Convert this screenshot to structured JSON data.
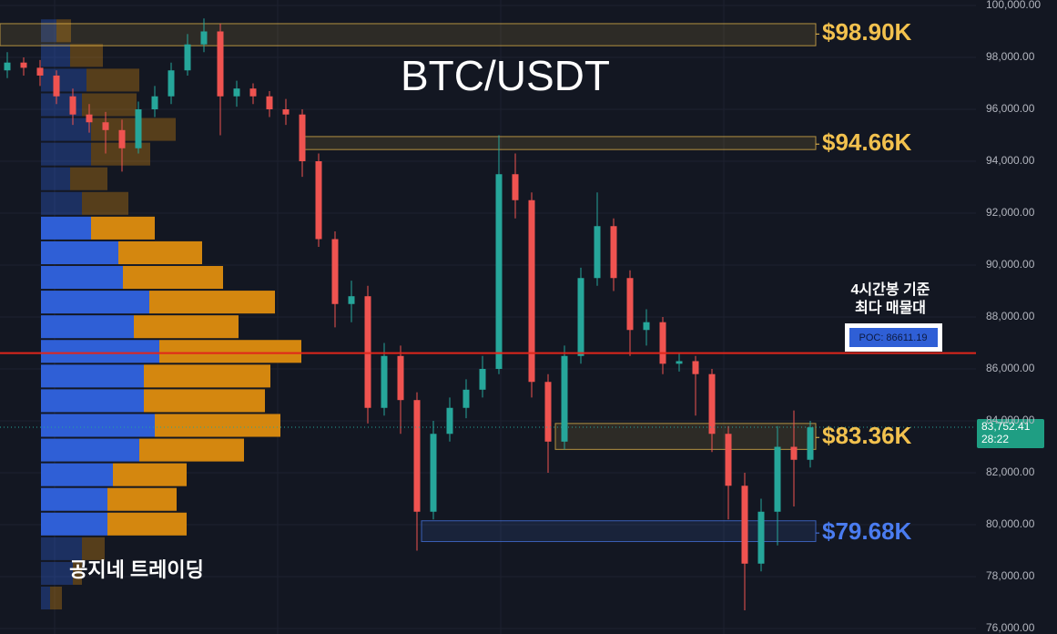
{
  "chart_data": {
    "type": "candlestick",
    "title": "BTC/USDT",
    "watermark": "공지네 트레이딩",
    "ylim": [
      76000,
      100000
    ],
    "yticks": [
      {
        "value": 76000,
        "label": "76,000.00"
      },
      {
        "value": 78000,
        "label": "78,000.00"
      },
      {
        "value": 80000,
        "label": "80,000.00"
      },
      {
        "value": 82000,
        "label": "82,000.00"
      },
      {
        "value": 84000,
        "label": "84,000.00"
      },
      {
        "value": 86000,
        "label": "86,000.00"
      },
      {
        "value": 88000,
        "label": "88,000.00"
      },
      {
        "value": 90000,
        "label": "90,000.00"
      },
      {
        "value": 92000,
        "label": "92,000.00"
      },
      {
        "value": 94000,
        "label": "94,000.00"
      },
      {
        "value": 96000,
        "label": "96,000.00"
      },
      {
        "value": 98000,
        "label": "98,000.00"
      },
      {
        "value": 100000,
        "label": "100,000.00"
      }
    ],
    "grid": true,
    "up_color": "#26a69a",
    "down_color": "#ef5350",
    "open": [
      97500,
      97800,
      97600,
      97300,
      96500,
      95800,
      95500,
      95200,
      94500,
      96000,
      96500,
      97500,
      98500,
      99000,
      96500,
      96800,
      96500,
      96000,
      95800,
      94000,
      91000,
      88500,
      88800,
      84500,
      86500,
      84800,
      80500,
      83500,
      84500,
      85200,
      86000,
      93500,
      92500,
      85500,
      83200,
      86500,
      89500,
      91500,
      89500,
      87500,
      87800,
      86200,
      86300,
      85800,
      83500,
      81500,
      78500,
      80500,
      83000,
      82500
    ],
    "high": [
      98200,
      98000,
      97900,
      97500,
      96800,
      96200,
      95900,
      95600,
      96300,
      96900,
      97800,
      98900,
      99500,
      99300,
      97100,
      97000,
      96700,
      96400,
      96000,
      94300,
      91300,
      89400,
      89200,
      87000,
      86900,
      85100,
      84000,
      84900,
      85600,
      86500,
      95000,
      94300,
      92800,
      85800,
      86900,
      89900,
      92800,
      91800,
      89800,
      88300,
      88000,
      86600,
      86500,
      86000,
      83800,
      82000,
      81000,
      83800,
      84400,
      84000
    ],
    "low": [
      97200,
      97300,
      96900,
      96200,
      95400,
      95100,
      94300,
      93600,
      94300,
      95700,
      96200,
      97300,
      98200,
      95000,
      96100,
      96200,
      95700,
      95400,
      93400,
      90700,
      87600,
      87800,
      83900,
      84200,
      83500,
      79000,
      80200,
      83200,
      84100,
      84900,
      85800,
      91800,
      84900,
      82000,
      82900,
      86200,
      89200,
      89000,
      86500,
      86900,
      85800,
      85900,
      84200,
      82800,
      80200,
      76700,
      78200,
      79200,
      80700,
      82200
    ],
    "close": [
      97800,
      97600,
      97300,
      96500,
      95800,
      95500,
      95200,
      94500,
      96000,
      96500,
      97500,
      98500,
      99000,
      96500,
      96800,
      96500,
      96000,
      95800,
      94000,
      91000,
      88500,
      88800,
      84500,
      86500,
      84800,
      80500,
      83500,
      84500,
      85200,
      86000,
      93500,
      92500,
      85500,
      83200,
      86500,
      89500,
      91500,
      89500,
      87500,
      87800,
      86200,
      86300,
      85800,
      83500,
      81500,
      78500,
      80500,
      83000,
      82500,
      83750
    ],
    "volume_profile": {
      "bins": [
        76700,
        77650,
        78600,
        79550,
        80500,
        81450,
        82400,
        83350,
        84300,
        85250,
        86200,
        87150,
        88100,
        89050,
        90000,
        90950,
        91900,
        92850,
        93800,
        94750,
        95700,
        96650,
        97600,
        98550,
        99500
      ],
      "buy": [
        10,
        35,
        45,
        73,
        73,
        79,
        108,
        125,
        113,
        113,
        130,
        102,
        119,
        90,
        85,
        55,
        45,
        32,
        55,
        55,
        45,
        50,
        32,
        17
      ],
      "sell": [
        13,
        10,
        25,
        87,
        76,
        81,
        115,
        138,
        133,
        139,
        156,
        115,
        138,
        110,
        92,
        70,
        51,
        41,
        65,
        93,
        60,
        58,
        36,
        16
      ],
      "buy_color": "#2f5fd6",
      "sell_color": "#d4870f",
      "value_area": [
        79550,
        91900
      ]
    },
    "levels": [
      {
        "label": "$98.90K",
        "value": 98900,
        "low": 98450,
        "high": 99300,
        "color": "#f2c14e"
      },
      {
        "label": "$94.66K",
        "value": 94660,
        "low": 94450,
        "high": 94950,
        "color": "#f2c14e"
      },
      {
        "label": "$83.36K",
        "value": 83360,
        "low": 82900,
        "high": 83900,
        "color": "#f2c14e"
      },
      {
        "label": "$79.68K",
        "value": 79680,
        "low": 79350,
        "high": 80150,
        "color": "#4a7cf0"
      }
    ],
    "poc": {
      "value": 86611.19,
      "label": "POC: 86611.19",
      "note": [
        "4시간봉 기준",
        "최다 매물대"
      ],
      "color": "#e0261b"
    },
    "current_price": {
      "value": 83752.41,
      "label": "83,752.41"
    },
    "countdown": "28:22"
  }
}
